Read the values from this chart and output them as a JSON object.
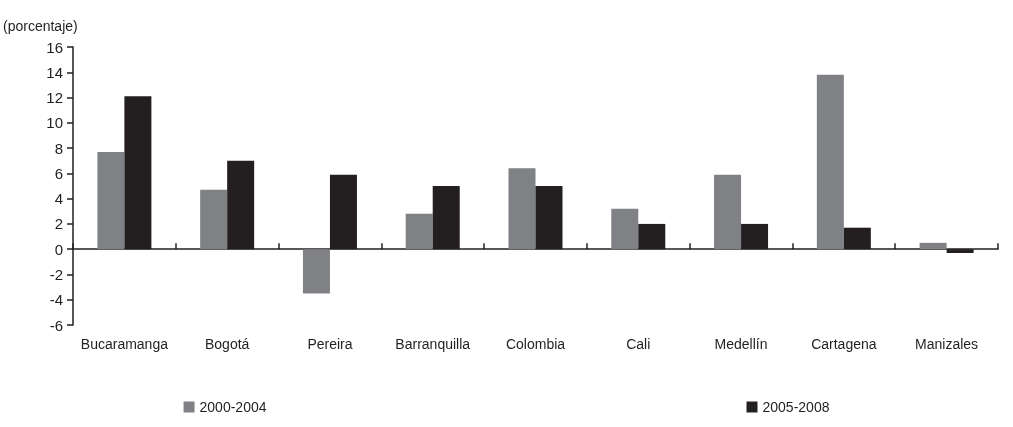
{
  "chart_data": {
    "type": "bar",
    "ylabel": "(porcentaje)",
    "categories": [
      "Bucaramanga",
      "Bogotá",
      "Pereira",
      "Barranquilla",
      "Colombia",
      "Cali",
      "Medellín",
      "Cartagena",
      "Manizales"
    ],
    "series": [
      {
        "name": "2000-2004",
        "color": "#808184",
        "values": [
          7.7,
          4.7,
          -3.5,
          2.8,
          6.4,
          3.2,
          5.9,
          13.8,
          0.5
        ]
      },
      {
        "name": "2005-2008",
        "color": "#231f20",
        "values": [
          12.1,
          7.0,
          5.9,
          5.0,
          5.0,
          2.0,
          2.0,
          1.7,
          -0.3
        ]
      }
    ],
    "ylim": [
      -6,
      16
    ],
    "yticks": [
      -6,
      -4,
      -2,
      0,
      2,
      4,
      6,
      8,
      10,
      12,
      14,
      16
    ],
    "legend": "bottom"
  }
}
